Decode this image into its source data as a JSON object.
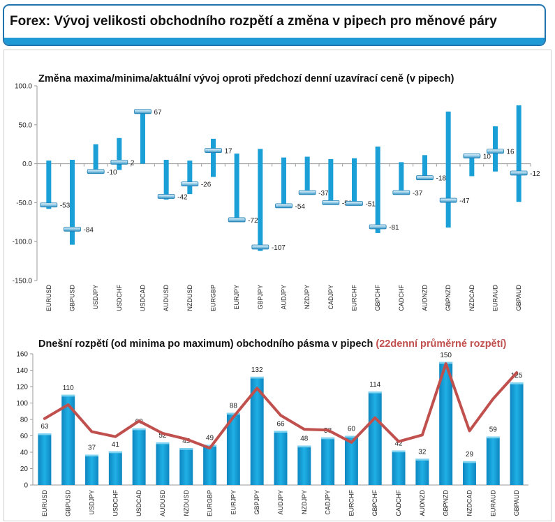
{
  "header": {
    "title": "Forex: Vývoj velikosti obchodního rozpětí a změna v pipech pro měnové páry"
  },
  "chart_data": [
    {
      "type": "bar",
      "title": "Změna maxima/minima/aktuální vývoj oproti předchozí denní uzavírací ceně (v pipech)",
      "categories": [
        "EURUSD",
        "GBPUSD",
        "USDJPY",
        "USDCHF",
        "USDCAD",
        "AUDUSD",
        "NZDUSD",
        "EURGBP",
        "EURJPY",
        "GBPJPY",
        "AUDJPY",
        "NZDJPY",
        "CADJPY",
        "EURCHF",
        "GBPCHF",
        "CADCHF",
        "AUDNZD",
        "GBPNZD",
        "NZDCAD",
        "EURAUD",
        "GBPAUD"
      ],
      "series": [
        {
          "name": "",
          "values": [
            4,
            5,
            25,
            33,
            67,
            5,
            4,
            32,
            13,
            19,
            8,
            9,
            6,
            7,
            22,
            2,
            11,
            67,
            12,
            48,
            75
          ]
        },
        {
          "name": "",
          "values": [
            -58,
            -104,
            -10,
            -8,
            0,
            -46,
            -39,
            -17,
            -72,
            -112,
            -55,
            -37,
            -51,
            -52,
            -89,
            -37,
            -20,
            -82,
            -16,
            -10,
            -49
          ]
        },
        {
          "name": "",
          "values": [
            -53,
            -84,
            -10,
            2,
            67,
            -42,
            -26,
            17,
            -72,
            -107,
            -54,
            -37,
            -50,
            -51,
            -81,
            -37,
            -18,
            -47,
            10,
            16,
            -12
          ]
        }
      ],
      "data_labels": [
        "-53",
        "-84",
        "-10",
        "2",
        "67",
        "-42",
        "-26",
        "17",
        "-72",
        "-107",
        "-54",
        "-37",
        "-50",
        "-51",
        "-81",
        "-37",
        "-18",
        "-47",
        "10",
        "16",
        "-12"
      ],
      "ylim": [
        -150,
        100
      ],
      "yticks": [
        "100.0",
        "50.0",
        "0.0",
        "-50.0",
        "-100.0",
        "-150.0"
      ],
      "xlabel": "",
      "ylabel": "",
      "grid": false,
      "colors": {
        "bar": "#1a9fd6",
        "marker": "#1a9fd6",
        "axis": "#9a9a9a"
      }
    },
    {
      "type": "bar",
      "title": "Dnešní rozpětí (od minima po maximum) obchodního pásma v pipech",
      "title_highlight": "(22denní průměrné rozpětí)",
      "categories": [
        "EURUSD",
        "GBPUSD",
        "USDJPY",
        "USDCHF",
        "USDCAD",
        "AUDUSD",
        "NZDUSD",
        "EURGBP",
        "EURJPY",
        "GBPJPY",
        "AUDJPY",
        "NZDJPY",
        "CADJPY",
        "EURCHF",
        "GBPCHF",
        "CADCHF",
        "AUDNZD",
        "GBPNZD",
        "NZDCAD",
        "EURAUD",
        "GBPAUD"
      ],
      "series": [
        {
          "name": "",
          "type": "bar",
          "values": [
            63,
            110,
            37,
            41,
            69,
            52,
            45,
            49,
            88,
            132,
            66,
            48,
            58,
            60,
            114,
            42,
            32,
            150,
            29,
            59,
            125
          ]
        },
        {
          "name": "",
          "type": "line",
          "values": [
            81,
            98,
            65,
            59,
            78,
            63,
            56,
            45,
            83,
            118,
            85,
            68,
            67,
            52,
            82,
            53,
            61,
            148,
            66,
            105,
            137
          ]
        }
      ],
      "data_labels": [
        "63",
        "110",
        "37",
        "41",
        "69",
        "52",
        "45",
        "49",
        "88",
        "132",
        "66",
        "48",
        "58",
        "60",
        "114",
        "42",
        "32",
        "150",
        "29",
        "59",
        "125"
      ],
      "ylim": [
        0,
        160
      ],
      "yticks": [
        "160",
        "140",
        "120",
        "100",
        "80",
        "60",
        "40",
        "20",
        "0"
      ],
      "xlabel": "",
      "ylabel": "",
      "grid": false,
      "colors": {
        "bar": "#1aa3d9",
        "bar_top": "#7fd3f0",
        "line": "#c0504d",
        "title_highlight": "#c0504d"
      }
    }
  ]
}
